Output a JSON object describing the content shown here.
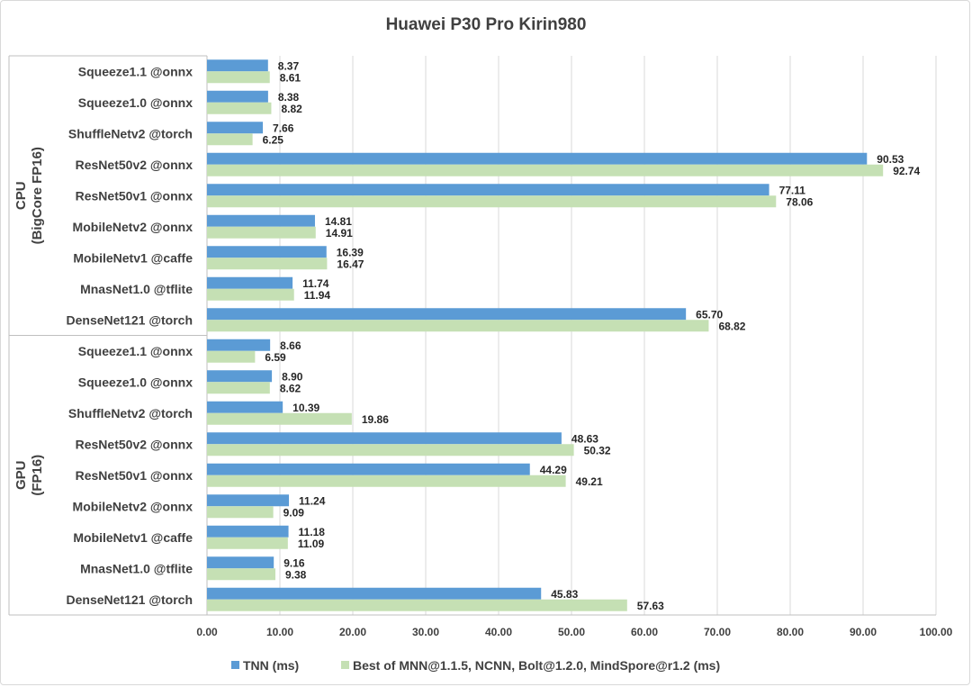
{
  "chart_data": {
    "type": "bar",
    "orientation": "horizontal",
    "title": "Huawei P30 Pro Kirin980",
    "xlim": [
      0,
      100
    ],
    "x_ticks": [
      "0.00",
      "10.00",
      "20.00",
      "30.00",
      "40.00",
      "50.00",
      "60.00",
      "70.00",
      "80.00",
      "90.00",
      "100.00"
    ],
    "grid": true,
    "legend_position": "bottom",
    "colors": {
      "tnn": "#5b9bd5",
      "best": "#c5e0b4",
      "grid": "#d9d9d9",
      "text": "#404040"
    },
    "series": [
      {
        "name": "TNN (ms)"
      },
      {
        "name": "Best of MNN@1.1.5, NCNN, Bolt@1.2.0, MindSpore@r1.2 (ms)"
      }
    ],
    "groups": [
      {
        "label_line1": "CPU",
        "label_line2": "(BigCore FP16)",
        "rows": [
          {
            "category": "Squeeze1.1 @onnx",
            "tnn": 8.37,
            "best": 8.61,
            "tnn_label": "8.37",
            "best_label": "8.61"
          },
          {
            "category": "Squeeze1.0 @onnx",
            "tnn": 8.38,
            "best": 8.82,
            "tnn_label": "8.38",
            "best_label": "8.82"
          },
          {
            "category": "ShuffleNetv2 @torch",
            "tnn": 7.66,
            "best": 6.25,
            "tnn_label": "7.66",
            "best_label": "6.25"
          },
          {
            "category": "ResNet50v2 @onnx",
            "tnn": 90.53,
            "best": 92.74,
            "tnn_label": "90.53",
            "best_label": "92.74"
          },
          {
            "category": "ResNet50v1 @onnx",
            "tnn": 77.11,
            "best": 78.06,
            "tnn_label": "77.11",
            "best_label": "78.06"
          },
          {
            "category": "MobileNetv2 @onnx",
            "tnn": 14.81,
            "best": 14.91,
            "tnn_label": "14.81",
            "best_label": "14.91"
          },
          {
            "category": "MobileNetv1 @caffe",
            "tnn": 16.39,
            "best": 16.47,
            "tnn_label": "16.39",
            "best_label": "16.47"
          },
          {
            "category": "MnasNet1.0 @tflite",
            "tnn": 11.74,
            "best": 11.94,
            "tnn_label": "11.74",
            "best_label": "11.94"
          },
          {
            "category": "DenseNet121 @torch",
            "tnn": 65.7,
            "best": 68.82,
            "tnn_label": "65.70",
            "best_label": "68.82"
          }
        ]
      },
      {
        "label_line1": "GPU",
        "label_line2": "(FP16)",
        "rows": [
          {
            "category": "Squeeze1.1 @onnx",
            "tnn": 8.66,
            "best": 6.59,
            "tnn_label": "8.66",
            "best_label": "6.59"
          },
          {
            "category": "Squeeze1.0 @onnx",
            "tnn": 8.9,
            "best": 8.62,
            "tnn_label": "8.90",
            "best_label": "8.62"
          },
          {
            "category": "ShuffleNetv2 @torch",
            "tnn": 10.39,
            "best": 19.86,
            "tnn_label": "10.39",
            "best_label": "19.86"
          },
          {
            "category": "ResNet50v2 @onnx",
            "tnn": 48.63,
            "best": 50.32,
            "tnn_label": "48.63",
            "best_label": "50.32"
          },
          {
            "category": "ResNet50v1 @onnx",
            "tnn": 44.29,
            "best": 49.21,
            "tnn_label": "44.29",
            "best_label": "49.21"
          },
          {
            "category": "MobileNetv2 @onnx",
            "tnn": 11.24,
            "best": 9.09,
            "tnn_label": "11.24",
            "best_label": "9.09"
          },
          {
            "category": "MobileNetv1 @caffe",
            "tnn": 11.18,
            "best": 11.09,
            "tnn_label": "11.18",
            "best_label": "11.09"
          },
          {
            "category": "MnasNet1.0 @tflite",
            "tnn": 9.16,
            "best": 9.38,
            "tnn_label": "9.16",
            "best_label": "9.38"
          },
          {
            "category": "DenseNet121 @torch",
            "tnn": 45.83,
            "best": 57.63,
            "tnn_label": "45.83",
            "best_label": "57.63"
          }
        ]
      }
    ]
  }
}
